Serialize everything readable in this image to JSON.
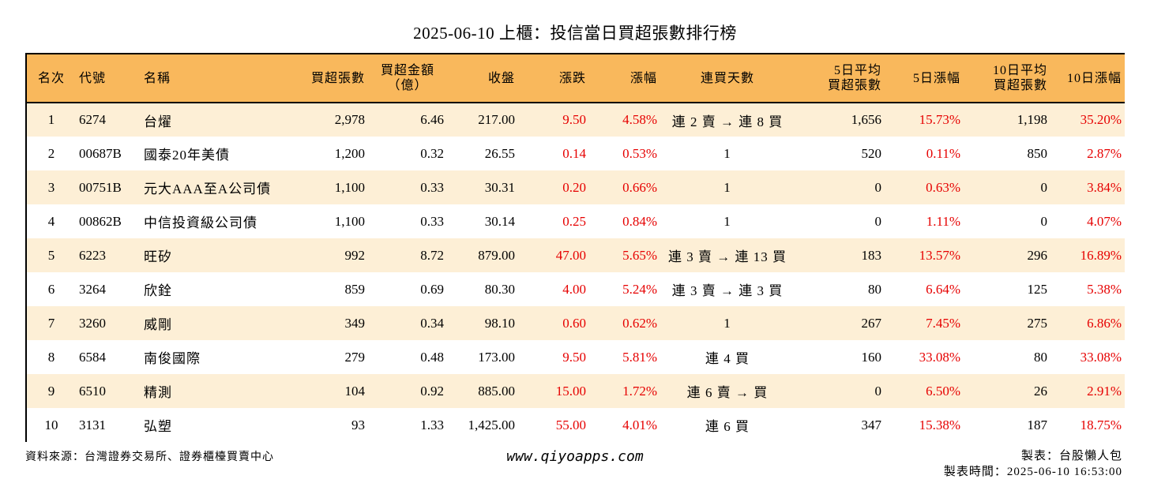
{
  "title": "2025-06-10 上櫃：投信當日買超張數排行榜",
  "headers": {
    "rank": "名次",
    "code": "代號",
    "name": "名稱",
    "buy_lots": "買超張數",
    "buy_amount_line1": "買超金額",
    "buy_amount_line2": "（億）",
    "close": "收盤",
    "change": "漲跌",
    "change_pct": "漲幅",
    "streak": "連買天數",
    "avg5_line1": "5日平均",
    "avg5_line2": "買超張數",
    "pct5": "5日漲幅",
    "avg10_line1": "10日平均",
    "avg10_line2": "買超張數",
    "pct10": "10日漲幅"
  },
  "rows": [
    {
      "rank": "1",
      "code": "6274",
      "name": "台燿",
      "buy_lots": "2,978",
      "buy_amount": "6.46",
      "close": "217.00",
      "change": "9.50",
      "change_pct": "4.58%",
      "streak": "連 2 賣 → 連 8 買",
      "avg5": "1,656",
      "pct5": "15.73%",
      "avg10": "1,198",
      "pct10": "35.20%"
    },
    {
      "rank": "2",
      "code": "00687B",
      "name": "國泰20年美債",
      "buy_lots": "1,200",
      "buy_amount": "0.32",
      "close": "26.55",
      "change": "0.14",
      "change_pct": "0.53%",
      "streak": "1",
      "avg5": "520",
      "pct5": "0.11%",
      "avg10": "850",
      "pct10": "2.87%"
    },
    {
      "rank": "3",
      "code": "00751B",
      "name": "元大AAA至A公司債",
      "buy_lots": "1,100",
      "buy_amount": "0.33",
      "close": "30.31",
      "change": "0.20",
      "change_pct": "0.66%",
      "streak": "1",
      "avg5": "0",
      "pct5": "0.63%",
      "avg10": "0",
      "pct10": "3.84%"
    },
    {
      "rank": "4",
      "code": "00862B",
      "name": "中信投資級公司債",
      "buy_lots": "1,100",
      "buy_amount": "0.33",
      "close": "30.14",
      "change": "0.25",
      "change_pct": "0.84%",
      "streak": "1",
      "avg5": "0",
      "pct5": "1.11%",
      "avg10": "0",
      "pct10": "4.07%"
    },
    {
      "rank": "5",
      "code": "6223",
      "name": "旺矽",
      "buy_lots": "992",
      "buy_amount": "8.72",
      "close": "879.00",
      "change": "47.00",
      "change_pct": "5.65%",
      "streak": "連 3 賣 → 連 13 買",
      "avg5": "183",
      "pct5": "13.57%",
      "avg10": "296",
      "pct10": "16.89%"
    },
    {
      "rank": "6",
      "code": "3264",
      "name": "欣銓",
      "buy_lots": "859",
      "buy_amount": "0.69",
      "close": "80.30",
      "change": "4.00",
      "change_pct": "5.24%",
      "streak": "連 3 賣 → 連 3 買",
      "avg5": "80",
      "pct5": "6.64%",
      "avg10": "125",
      "pct10": "5.38%"
    },
    {
      "rank": "7",
      "code": "3260",
      "name": "威剛",
      "buy_lots": "349",
      "buy_amount": "0.34",
      "close": "98.10",
      "change": "0.60",
      "change_pct": "0.62%",
      "streak": "1",
      "avg5": "267",
      "pct5": "7.45%",
      "avg10": "275",
      "pct10": "6.86%"
    },
    {
      "rank": "8",
      "code": "6584",
      "name": "南俊國際",
      "buy_lots": "279",
      "buy_amount": "0.48",
      "close": "173.00",
      "change": "9.50",
      "change_pct": "5.81%",
      "streak": "連 4 買",
      "avg5": "160",
      "pct5": "33.08%",
      "avg10": "80",
      "pct10": "33.08%"
    },
    {
      "rank": "9",
      "code": "6510",
      "name": "精測",
      "buy_lots": "104",
      "buy_amount": "0.92",
      "close": "885.00",
      "change": "15.00",
      "change_pct": "1.72%",
      "streak": "連 6 賣 → 買",
      "avg5": "0",
      "pct5": "6.50%",
      "avg10": "26",
      "pct10": "2.91%"
    },
    {
      "rank": "10",
      "code": "3131",
      "name": "弘塑",
      "buy_lots": "93",
      "buy_amount": "1.33",
      "close": "1,425.00",
      "change": "55.00",
      "change_pct": "4.01%",
      "streak": "連 6 買",
      "avg5": "347",
      "pct5": "15.38%",
      "avg10": "187",
      "pct10": "18.75%"
    }
  ],
  "footer": {
    "source": "資料來源：台灣證券交易所、證券櫃檯買賣中心",
    "website": "www.qiyoapps.com",
    "made_by": "製表：台股懶人包",
    "made_time": "製表時間：2025-06-10 16:53:00"
  },
  "colors": {
    "header_bg": "#f9b85c",
    "odd_row_bg": "#fdefd6",
    "up_red": "#e60000"
  }
}
